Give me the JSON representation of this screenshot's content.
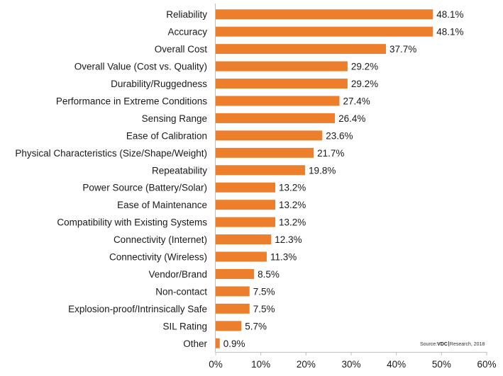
{
  "chart_data": {
    "type": "bar",
    "orientation": "horizontal",
    "title": "",
    "xlabel": "",
    "ylabel": "",
    "xlim": [
      0,
      60
    ],
    "grid": false,
    "bar_color": "#ED7F2C",
    "categories": [
      "Reliability",
      "Accuracy",
      "Overall Cost",
      "Overall Value (Cost vs. Quality)",
      "Durability/Ruggedness",
      "Performance in Extreme Conditions",
      "Sensing Range",
      "Ease of Calibration",
      "Physical Characteristics (Size/Shape/Weight)",
      "Repeatability",
      "Power Source (Battery/Solar)",
      "Ease of Maintenance",
      "Compatibility with Existing Systems",
      "Connectivity (Internet)",
      "Connectivity (Wireless)",
      "Vendor/Brand",
      "Non-contact",
      "Explosion-proof/Intrinsically Safe",
      "SIL Rating",
      "Other"
    ],
    "values": [
      48.1,
      48.1,
      37.7,
      29.2,
      29.2,
      27.4,
      26.4,
      23.6,
      21.7,
      19.8,
      13.2,
      13.2,
      13.2,
      12.3,
      11.3,
      8.5,
      7.5,
      7.5,
      5.7,
      0.9
    ],
    "value_labels": [
      "48.1%",
      "48.1%",
      "37.7%",
      "29.2%",
      "29.2%",
      "27.4%",
      "26.4%",
      "23.6%",
      "21.7%",
      "19.8%",
      "13.2%",
      "13.2%",
      "13.2%",
      "12.3%",
      "11.3%",
      "8.5%",
      "7.5%",
      "7.5%",
      "5.7%",
      "0.9%"
    ],
    "x_ticks": [
      0,
      10,
      20,
      30,
      40,
      50,
      60
    ],
    "x_tick_labels": [
      "0%",
      "10%",
      "20%",
      "30%",
      "40%",
      "50%",
      "60%"
    ]
  },
  "source": {
    "prefix": "Source:",
    "brand": "VDC",
    "suffix": "Research, 2018"
  }
}
